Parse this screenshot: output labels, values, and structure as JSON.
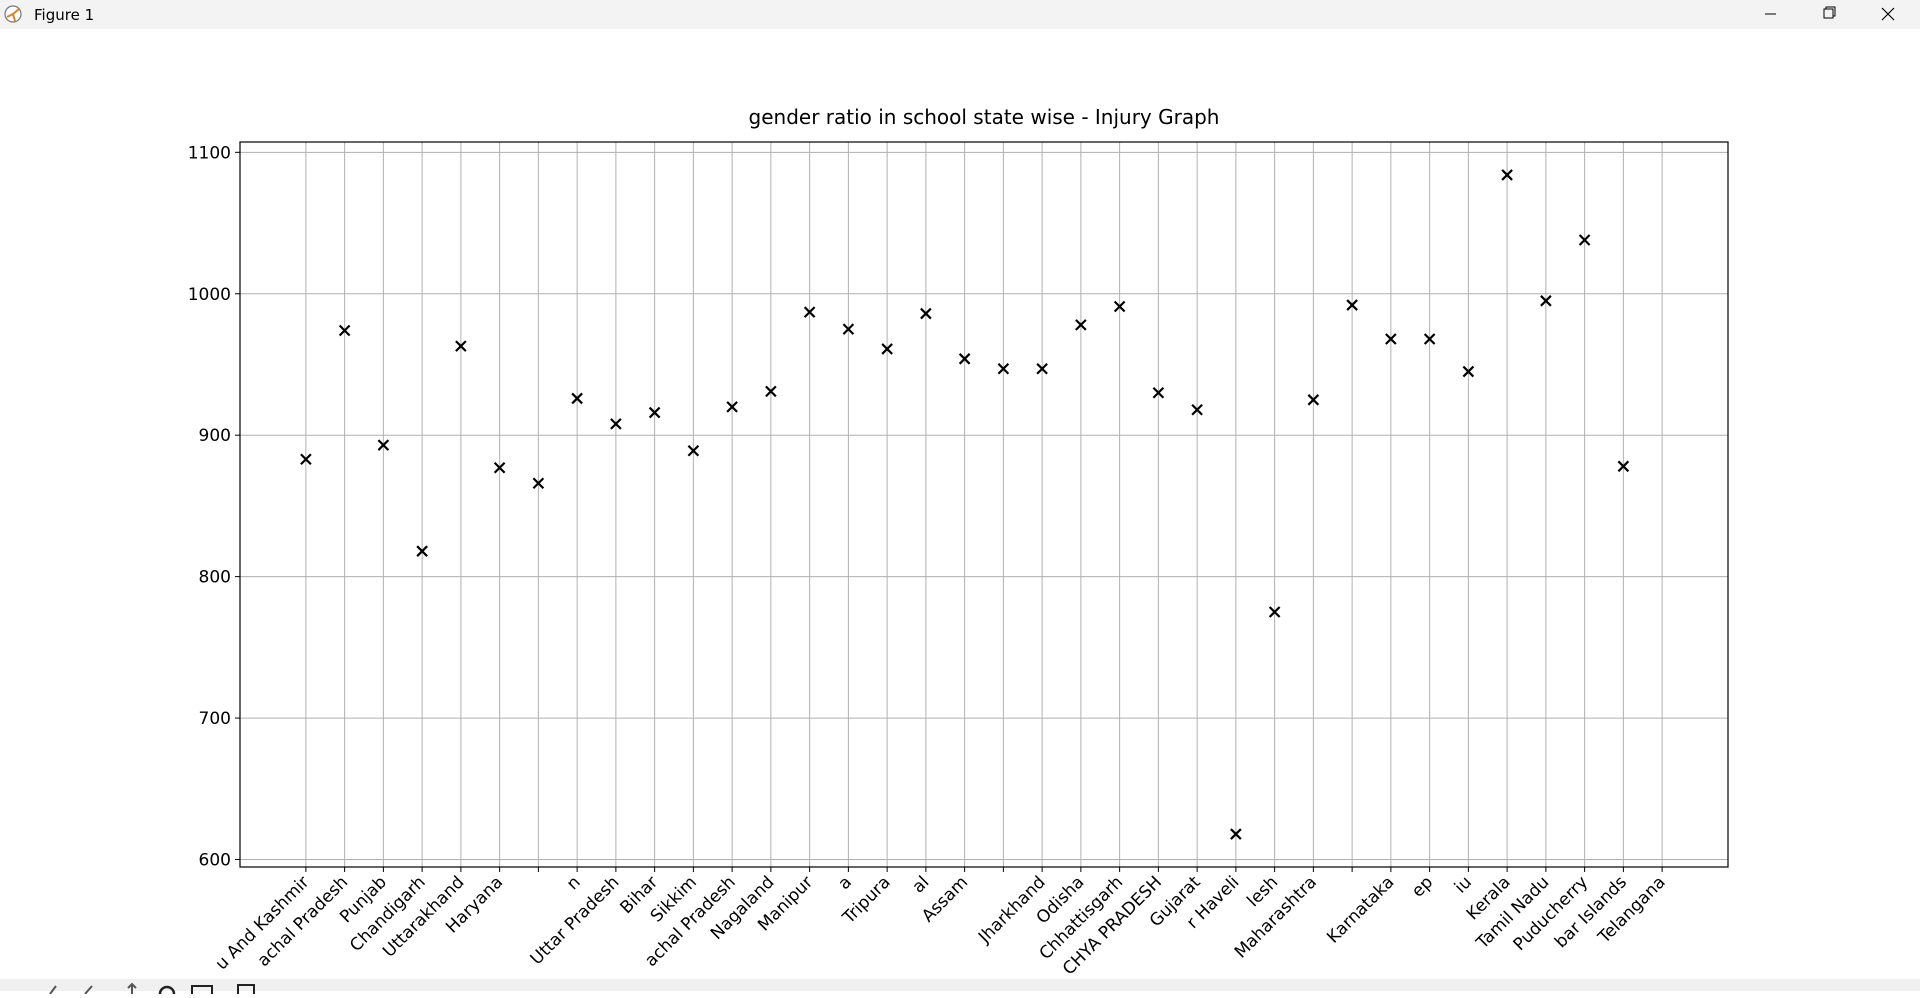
{
  "window_title": "Figure 1",
  "chart_data": {
    "type": "scatter",
    "title": "gender ratio in school state wise - Injury Graph",
    "categories": [
      "u And Kashmir",
      "achal Pradesh",
      "Punjab",
      "Chandigarh",
      "Uttarakhand",
      "Haryana",
      null,
      "n",
      "Uttar Pradesh",
      "Bihar",
      "Sikkim",
      "achal Pradesh",
      "Nagaland",
      "Manipur",
      "a",
      "Tripura",
      "al",
      "Assam",
      null,
      "Jharkhand",
      "Odisha",
      "Chhattisgarh",
      "CHYA PRADESH",
      "Gujarat",
      "r Haveli",
      "lesh",
      "Maharashtra",
      null,
      "Karnataka",
      "ep",
      "iu",
      "Kerala",
      "Tamil Nadu",
      "Puducherry",
      "bar Islands",
      "Telangana"
    ],
    "values": [
      883,
      974,
      893,
      818,
      963,
      877,
      866,
      926,
      908,
      916,
      889,
      920,
      931,
      987,
      975,
      961,
      986,
      954,
      947,
      947,
      978,
      991,
      930,
      918,
      618,
      775,
      925,
      992,
      968,
      968,
      945,
      1084,
      995,
      1038,
      878,
      null
    ],
    "color": "#000000",
    "marker": "x",
    "ylim": [
      594.7,
      1107.3
    ],
    "yticks": [
      600,
      700,
      800,
      900,
      1000,
      1100
    ],
    "grid": true
  }
}
